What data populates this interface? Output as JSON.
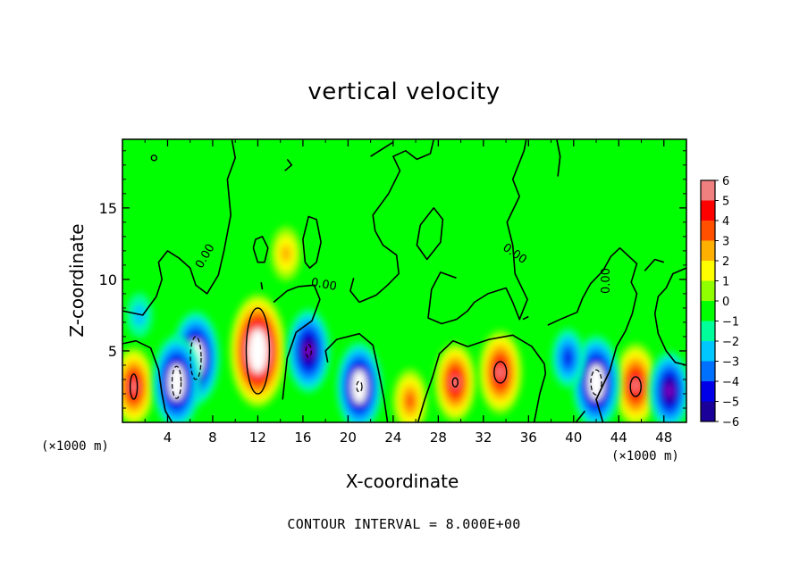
{
  "chart_data": {
    "type": "heatmap",
    "title": "vertical velocity",
    "xlabel": "X-coordinate",
    "ylabel": "Z-coordinate",
    "x_unit": "(×1000 m)",
    "x_unit_right": "(×1000 m)",
    "footer": "CONTOUR INTERVAL = 8.000E+00",
    "xlim": [
      0,
      50
    ],
    "ylim": [
      0,
      19.8
    ],
    "x_ticks": [
      "4",
      "8",
      "12",
      "16",
      "20",
      "24",
      "28",
      "32",
      "36",
      "40",
      "44",
      "48"
    ],
    "y_ticks": [
      "5",
      "10",
      "15"
    ],
    "colorbar_ticks": [
      "6",
      "5",
      "4",
      "3",
      "2",
      "1",
      "0",
      "−1",
      "−2",
      "−3",
      "−4",
      "−5",
      "−6"
    ],
    "colorbar_range": [
      -6,
      6
    ],
    "contour_labels": [
      "0.00",
      "0.00",
      "0.00",
      "0.00"
    ],
    "colormap": [
      "#8a00c8",
      "#1a0098",
      "#0000e8",
      "#0070ff",
      "#00c8ff",
      "#00ff9a",
      "#00ff00",
      "#90ff00",
      "#ffff00",
      "#ffb000",
      "#ff5000",
      "#ff0000",
      "#f08080"
    ],
    "background_color": "#00ff00",
    "grid": false,
    "features": [
      {
        "kind": "updraft",
        "x": 12,
        "z": 5.0,
        "value": 9
      },
      {
        "kind": "updraft",
        "x": 33.5,
        "z": 3.5,
        "value": 6
      },
      {
        "kind": "updraft",
        "x": 29.5,
        "z": 2.8,
        "value": 5.5
      },
      {
        "kind": "updraft",
        "x": 45.5,
        "z": 2.6,
        "value": 6
      },
      {
        "kind": "updraft",
        "x": 1.0,
        "z": 2.5,
        "value": 5.5
      },
      {
        "kind": "updraft",
        "x": 25.5,
        "z": 1.5,
        "value": 4
      },
      {
        "kind": "updraft",
        "x": 14.5,
        "z": 11.8,
        "value": 3
      },
      {
        "kind": "downdraft",
        "x": 6.5,
        "z": 4.5,
        "value": -7
      },
      {
        "kind": "downdraft",
        "x": 4.8,
        "z": 2.8,
        "value": -7
      },
      {
        "kind": "downdraft",
        "x": 16.5,
        "z": 5.0,
        "value": -6
      },
      {
        "kind": "downdraft",
        "x": 21.0,
        "z": 2.5,
        "value": -6.5
      },
      {
        "kind": "downdraft",
        "x": 42.0,
        "z": 2.8,
        "value": -7
      },
      {
        "kind": "downdraft",
        "x": 48.5,
        "z": 2.2,
        "value": -5.5
      },
      {
        "kind": "downdraft",
        "x": 39.5,
        "z": 4.5,
        "value": -3.5
      },
      {
        "kind": "downdraft",
        "x": 1.5,
        "z": 7.5,
        "value": -2
      }
    ]
  }
}
